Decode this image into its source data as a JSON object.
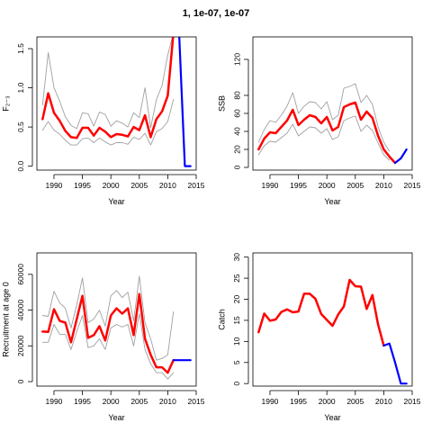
{
  "figure": {
    "title": "1, 1e-07, 1e-07"
  },
  "colors": {
    "estimate": "#ff0000",
    "projection": "#0000ff",
    "bounds": "#a0a0a0"
  },
  "chart_data": [
    {
      "type": "line",
      "xlabel": "Year",
      "ylabel": "F₂₋₃",
      "xlim": [
        1987,
        2015
      ],
      "ylim": [
        -0.05,
        1.65
      ],
      "xticks": [
        "1990",
        "1995",
        "2000",
        "2005",
        "2010",
        "2015"
      ],
      "yticks": [
        "0.0",
        "0.5",
        "1.0",
        "1.5"
      ],
      "series": [
        {
          "role": "estimate",
          "x": [
            1988,
            1989,
            1990,
            1991,
            1992,
            1993,
            1994,
            1995,
            1996,
            1997,
            1998,
            1999,
            2000,
            2001,
            2002,
            2003,
            2004,
            2005,
            2006,
            2007,
            2008,
            2009,
            2010,
            2011
          ],
          "y": [
            0.6,
            0.93,
            0.68,
            0.58,
            0.45,
            0.37,
            0.36,
            0.49,
            0.49,
            0.39,
            0.49,
            0.44,
            0.37,
            0.41,
            0.4,
            0.38,
            0.5,
            0.46,
            0.65,
            0.37,
            0.6,
            0.7,
            0.9,
            1.7
          ]
        },
        {
          "role": "upper",
          "x": [
            1988,
            1989,
            1990,
            1991,
            1992,
            1993,
            1994,
            1995,
            1996,
            1997,
            1998,
            1999,
            2000,
            2001,
            2002,
            2003,
            2004,
            2005,
            2006,
            2007,
            2008,
            2009,
            2010,
            2011
          ],
          "y": [
            0.78,
            1.45,
            1.0,
            0.83,
            0.63,
            0.52,
            0.48,
            0.68,
            0.67,
            0.51,
            0.69,
            0.66,
            0.51,
            0.58,
            0.55,
            0.5,
            0.68,
            0.62,
            1.0,
            0.49,
            0.85,
            1.03,
            1.42,
            1.7
          ]
        },
        {
          "role": "lower",
          "x": [
            1988,
            1989,
            1990,
            1991,
            1992,
            1993,
            1994,
            1995,
            1996,
            1997,
            1998,
            1999,
            2000,
            2001,
            2002,
            2003,
            2004,
            2005,
            2006,
            2007,
            2008,
            2009,
            2010,
            2011
          ],
          "y": [
            0.46,
            0.57,
            0.46,
            0.41,
            0.33,
            0.27,
            0.27,
            0.35,
            0.36,
            0.3,
            0.36,
            0.31,
            0.27,
            0.3,
            0.3,
            0.28,
            0.37,
            0.34,
            0.42,
            0.27,
            0.44,
            0.48,
            0.57,
            0.85
          ]
        },
        {
          "role": "projection",
          "x": [
            2012,
            2013,
            2014
          ],
          "y": [
            1.7,
            0.0,
            0.0
          ]
        }
      ]
    },
    {
      "type": "line",
      "xlabel": "Year",
      "ylabel": "SSB",
      "xlim": [
        1987,
        2015
      ],
      "ylim": [
        -3,
        145
      ],
      "xticks": [
        "1990",
        "1995",
        "2000",
        "2005",
        "2010",
        "2015"
      ],
      "yticks": [
        "0",
        "20",
        "40",
        "60",
        "80",
        "120"
      ],
      "ytick_values": [
        0,
        20,
        40,
        60,
        80,
        120
      ],
      "series": [
        {
          "role": "estimate",
          "x": [
            1988,
            1989,
            1990,
            1991,
            1992,
            1993,
            1994,
            1995,
            1996,
            1997,
            1998,
            1999,
            2000,
            2001,
            2002,
            2003,
            2004,
            2005,
            2006,
            2007,
            2008,
            2009,
            2010,
            2011,
            2012
          ],
          "y": [
            20,
            32,
            39,
            38,
            45,
            52,
            64,
            47,
            53,
            58,
            56,
            49,
            56,
            41,
            45,
            67,
            70,
            72,
            53,
            62,
            55,
            35,
            20,
            12,
            5
          ]
        },
        {
          "role": "upper",
          "x": [
            1988,
            1989,
            1990,
            1991,
            1992,
            1993,
            1994,
            1995,
            1996,
            1997,
            1998,
            1999,
            2000,
            2001,
            2002,
            2003,
            2004,
            2005,
            2006,
            2007,
            2008,
            2009,
            2010,
            2011
          ],
          "y": [
            28,
            42,
            52,
            50,
            58,
            68,
            83,
            60,
            68,
            73,
            72,
            65,
            73,
            53,
            58,
            88,
            90,
            93,
            72,
            80,
            70,
            45,
            28,
            18
          ]
        },
        {
          "role": "lower",
          "x": [
            1988,
            1989,
            1990,
            1991,
            1992,
            1993,
            1994,
            1995,
            1996,
            1997,
            1998,
            1999,
            2000,
            2001,
            2002,
            2003,
            2004,
            2005,
            2006,
            2007,
            2008,
            2009,
            2010,
            2011
          ],
          "y": [
            14,
            24,
            29,
            28,
            33,
            38,
            48,
            35,
            40,
            45,
            44,
            38,
            43,
            31,
            34,
            52,
            55,
            57,
            40,
            47,
            41,
            27,
            14,
            8
          ]
        },
        {
          "role": "projection",
          "x": [
            2012,
            2013,
            2014
          ],
          "y": [
            5,
            10,
            20
          ]
        }
      ]
    },
    {
      "type": "line",
      "xlabel": "Year",
      "ylabel": "Recruitment at age 0",
      "xlim": [
        1987,
        2015
      ],
      "ylim": [
        -2500,
        72000
      ],
      "xticks": [
        "1990",
        "1995",
        "2000",
        "2005",
        "2010",
        "2015"
      ],
      "yticks": [
        "0",
        "20000",
        "40000",
        "60000"
      ],
      "ytick_values": [
        0,
        20000,
        40000,
        60000
      ],
      "series": [
        {
          "role": "estimate",
          "x": [
            1988,
            1989,
            1990,
            1991,
            1992,
            1993,
            1994,
            1995,
            1996,
            1997,
            1998,
            1999,
            2000,
            2001,
            2002,
            2003,
            2004,
            2005,
            2006,
            2007,
            2008,
            2009,
            2010,
            2011
          ],
          "y": [
            28000,
            27800,
            40500,
            34000,
            33000,
            22000,
            35000,
            48000,
            24500,
            26000,
            31000,
            23000,
            37000,
            41000,
            38000,
            41000,
            26000,
            49000,
            24000,
            15000,
            8000,
            8000,
            5000,
            12000
          ]
        },
        {
          "role": "upper",
          "x": [
            1988,
            1989,
            1990,
            1991,
            1992,
            1993,
            1994,
            1995,
            1996,
            1997,
            1998,
            1999,
            2000,
            2001,
            2002,
            2003,
            2004,
            2005,
            2006,
            2007,
            2008,
            2009,
            2010,
            2011
          ],
          "y": [
            37000,
            36500,
            50500,
            44000,
            41000,
            30000,
            43000,
            58000,
            33000,
            35000,
            40000,
            31000,
            48000,
            51000,
            47000,
            50000,
            34000,
            59000,
            33000,
            24000,
            12000,
            13000,
            15000,
            39000
          ]
        },
        {
          "role": "lower",
          "x": [
            1988,
            1989,
            1990,
            1991,
            1992,
            1993,
            1994,
            1995,
            1996,
            1997,
            1998,
            1999,
            2000,
            2001,
            2002,
            2003,
            2004,
            2005,
            2006,
            2007,
            2008,
            2009,
            2010,
            2011
          ],
          "y": [
            22000,
            22000,
            32000,
            26500,
            26500,
            18000,
            28000,
            37000,
            19000,
            20000,
            24000,
            18000,
            30000,
            32000,
            30500,
            32000,
            20000,
            38000,
            18000,
            10000,
            5000,
            5000,
            1500,
            5000
          ]
        },
        {
          "role": "projection",
          "x": [
            2011,
            2012,
            2013,
            2014
          ],
          "y": [
            12000,
            12000,
            12000,
            12000
          ]
        }
      ]
    },
    {
      "type": "line",
      "xlabel": "Year",
      "ylabel": "Catch",
      "xlim": [
        1987,
        2015
      ],
      "ylim": [
        -0.6,
        31
      ],
      "xticks": [
        "1990",
        "1995",
        "2000",
        "2005",
        "2010",
        "2015"
      ],
      "yticks": [
        "0",
        "5",
        "10",
        "15",
        "20",
        "25",
        "30"
      ],
      "ytick_values": [
        0,
        5,
        10,
        15,
        20,
        25,
        30
      ],
      "series": [
        {
          "role": "estimate",
          "x": [
            1988,
            1989,
            1990,
            1991,
            1992,
            1993,
            1994,
            1995,
            1996,
            1997,
            1998,
            1999,
            2000,
            2001,
            2002,
            2003,
            2004,
            2005,
            2006,
            2007,
            2008,
            2009,
            2010
          ],
          "y": [
            12.2,
            16.6,
            14.9,
            15.2,
            17.0,
            17.6,
            16.9,
            17.1,
            21.3,
            21.3,
            20.1,
            16.5,
            15.1,
            13.7,
            16.4,
            18.3,
            24.6,
            23.1,
            23.0,
            17.7,
            21.0,
            14.0,
            9.0
          ]
        },
        {
          "role": "projection",
          "x": [
            2010,
            2011,
            2012,
            2013,
            2014
          ],
          "y": [
            9.0,
            9.5,
            5.0,
            0.0,
            0.0
          ]
        }
      ]
    }
  ]
}
